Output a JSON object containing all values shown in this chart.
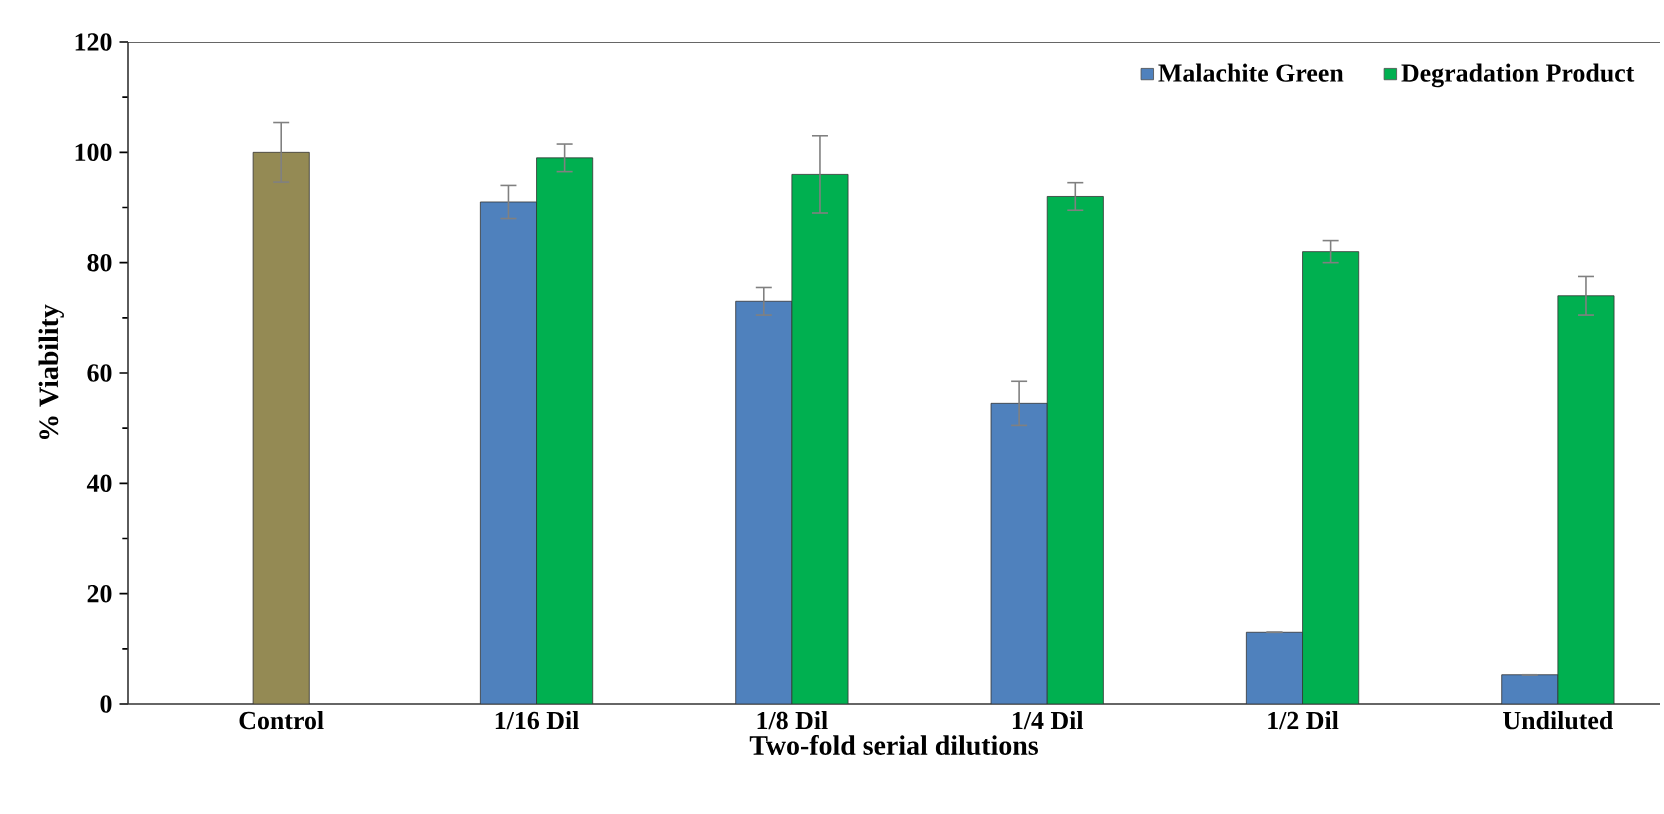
{
  "chart_data": {
    "type": "bar",
    "xlabel": "Two-fold serial dilutions",
    "ylabel": "% Viability",
    "categories": [
      "Control",
      "1/16 Dil",
      "1/8 Dil",
      "1/4 Dil",
      "1/2 Dil",
      "Undiluted"
    ],
    "series": [
      {
        "color": "#948a54",
        "values": [
          100,
          null,
          null,
          null,
          null,
          null
        ],
        "errors": [
          5.4,
          null,
          null,
          null,
          null,
          null
        ]
      },
      {
        "name": "Malachite Green",
        "color": "#4f81bd",
        "values": [
          null,
          91,
          73,
          54.5,
          13,
          5.3
        ],
        "errors": [
          null,
          3,
          2.5,
          4,
          null,
          null
        ]
      },
      {
        "name": "Degradation Product",
        "color": "#00b050",
        "values": [
          null,
          99,
          96,
          92,
          82,
          74
        ],
        "errors": [
          null,
          2.5,
          7,
          2.5,
          2,
          3.5
        ]
      }
    ],
    "ylim": [
      0,
      120
    ],
    "yticks": [
      0,
      20,
      40,
      60,
      80,
      100,
      120
    ],
    "legend": "top right",
    "grid": false
  }
}
